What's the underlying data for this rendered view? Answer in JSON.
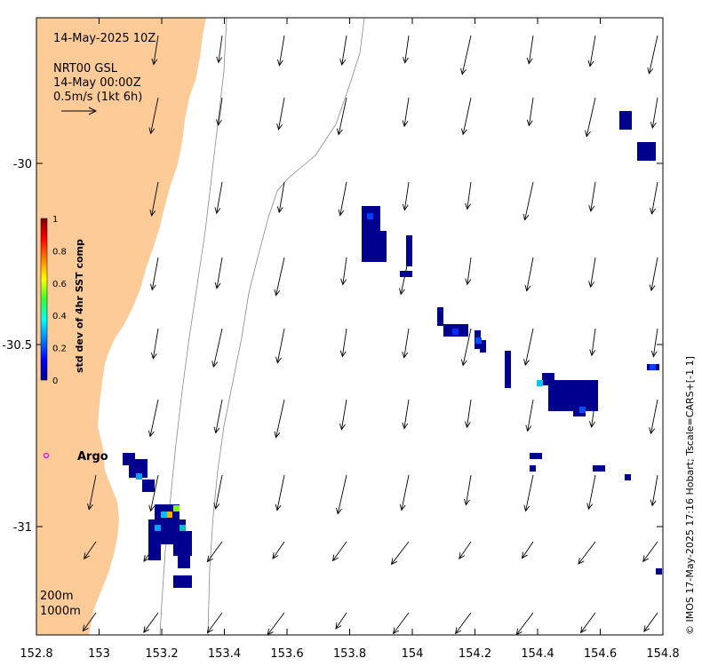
{
  "header": {
    "date_line": "14-May-2025 10Z",
    "model_line": "NRT00 GSL",
    "time_line": "14-May 00:00Z",
    "scale_line": "0.5m/s (1kt 6h)"
  },
  "axes": {
    "x_ticks": [
      "152.8",
      "153",
      "153.2",
      "153.4",
      "153.6",
      "153.8",
      "154",
      "154.2",
      "154.4",
      "154.6",
      "154.8"
    ],
    "y_ticks": [
      "-30",
      "-30.5",
      "-31"
    ]
  },
  "colorbar": {
    "label": "std dev of 4hr SST comp",
    "ticks": [
      "1",
      "0.8",
      "0.6",
      "0.4",
      "0.2",
      "0"
    ]
  },
  "argo_label": "Argo",
  "bathymetry": {
    "contour_1": "200m",
    "contour_2": "1000m"
  },
  "credit": "© IMOS 17-May-2025 17:16 Hobart; Tscale=CARS+[-1 1]",
  "colors": {
    "land": "#FDCB98",
    "sst_low": "#00008F",
    "argo": "#FF00FF"
  }
}
